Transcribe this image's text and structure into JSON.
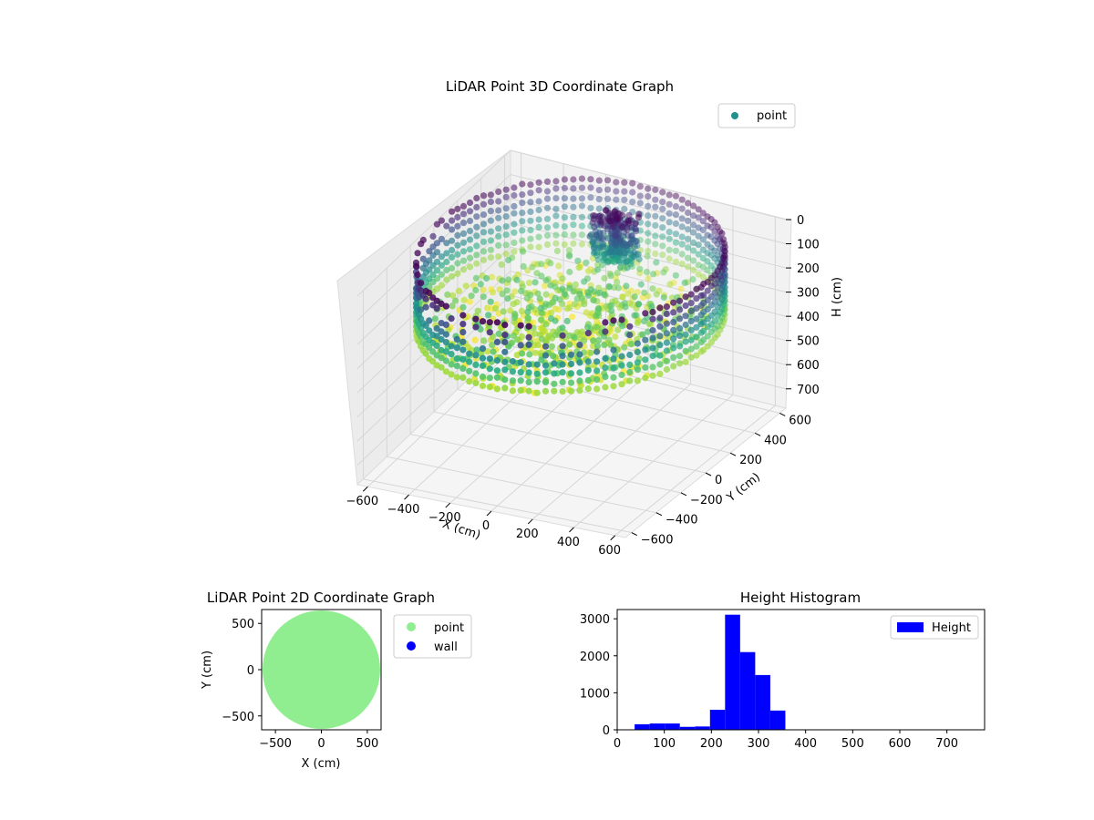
{
  "chart_data": [
    {
      "type": "scatter3d",
      "title": "LiDAR Point 3D Coordinate Graph",
      "xlabel": "X (cm)",
      "ylabel": "Y (cm)",
      "zlabel": "H (cm)",
      "xlim": [
        -650,
        650
      ],
      "ylim": [
        -650,
        650
      ],
      "zlim": [
        0,
        780
      ],
      "z_inverted": true,
      "xticks": [
        -600,
        -400,
        -200,
        0,
        200,
        400,
        600
      ],
      "yticks": [
        -600,
        -400,
        -200,
        0,
        200,
        400,
        600
      ],
      "zticks": [
        0,
        100,
        200,
        300,
        400,
        500,
        600,
        700
      ],
      "colormap": "viridis",
      "legend": [
        {
          "label": "point",
          "color": "#21918c"
        }
      ],
      "legend_position": "top-right",
      "grid": true,
      "series": [
        {
          "name": "point",
          "shape": "disc",
          "radius_cm": 640,
          "rim_height_range": [
            0,
            300
          ],
          "floor_height_range": [
            220,
            320
          ],
          "central_structure_radius_cm": 120,
          "central_structure_height_range": [
            0,
            200
          ]
        }
      ]
    },
    {
      "type": "scatter",
      "title": "LiDAR Point 2D Coordinate Graph",
      "xlabel": "X (cm)",
      "ylabel": "Y (cm)",
      "xlim": [
        -650,
        650
      ],
      "ylim": [
        -650,
        650
      ],
      "xticks": [
        -500,
        0,
        500
      ],
      "yticks": [
        -500,
        0,
        500
      ],
      "legend": [
        {
          "label": "point",
          "color": "#90ee90"
        },
        {
          "label": "wall",
          "color": "#0000ff"
        }
      ],
      "legend_position": "outside-right",
      "series": [
        {
          "name": "point",
          "shape": "filled-disc",
          "radius_cm": 640
        }
      ]
    },
    {
      "type": "histogram",
      "title": "Height Histogram",
      "xlabel": "",
      "ylabel": "",
      "xlim": [
        0,
        780
      ],
      "ylim": [
        0,
        3250
      ],
      "xticks": [
        0,
        100,
        200,
        300,
        400,
        500,
        600,
        700
      ],
      "yticks": [
        0,
        1000,
        2000,
        3000
      ],
      "legend": [
        {
          "label": "Height",
          "color": "#0000ff"
        }
      ],
      "legend_position": "top-right",
      "bins": [
        {
          "start": 37,
          "end": 69,
          "count": 150
        },
        {
          "start": 69,
          "end": 101,
          "count": 170
        },
        {
          "start": 101,
          "end": 133,
          "count": 170
        },
        {
          "start": 133,
          "end": 165,
          "count": 80
        },
        {
          "start": 165,
          "end": 197,
          "count": 90
        },
        {
          "start": 197,
          "end": 229,
          "count": 540
        },
        {
          "start": 229,
          "end": 261,
          "count": 3110
        },
        {
          "start": 261,
          "end": 293,
          "count": 2100
        },
        {
          "start": 293,
          "end": 325,
          "count": 1480
        },
        {
          "start": 325,
          "end": 357,
          "count": 520
        }
      ]
    }
  ]
}
